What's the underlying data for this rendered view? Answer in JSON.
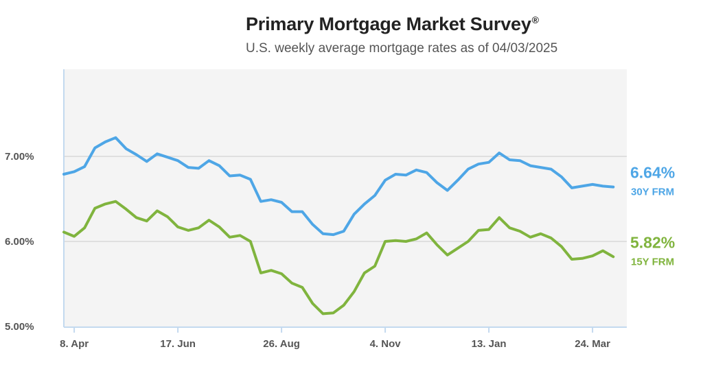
{
  "title": {
    "text": "Primary Mortgage Market Survey",
    "mark": "®",
    "subtitle": "U.S. weekly average mortgage rates as of 04/03/2025"
  },
  "colors": {
    "series_30y": "#4ea6e6",
    "series_15y": "#80b43e",
    "plot_bg": "#f4f4f4",
    "grid": "#d8d8d8",
    "axis": "#c3d9ef"
  },
  "chart_data": {
    "type": "line",
    "title": "Primary Mortgage Market Survey®",
    "subtitle": "U.S. weekly average mortgage rates as of 04/03/2025",
    "x_tick_labels": [
      "8. Apr",
      "17. Jun",
      "26. Aug",
      "4. Nov",
      "13. Jan",
      "24. Mar"
    ],
    "x_tick_weeks": [
      1,
      11,
      21,
      31,
      41,
      51
    ],
    "y_tick_labels": [
      "5.00%",
      "6.00%",
      "7.00%"
    ],
    "y_ticks": [
      5,
      6,
      7
    ],
    "ylim": [
      4.9,
      8.0
    ],
    "grid": true,
    "series": [
      {
        "name": "30Y FRM",
        "end_label": "6.64%",
        "values": [
          6.79,
          6.82,
          6.88,
          7.1,
          7.17,
          7.22,
          7.09,
          7.02,
          6.94,
          7.03,
          6.99,
          6.95,
          6.87,
          6.86,
          6.95,
          6.89,
          6.77,
          6.78,
          6.73,
          6.47,
          6.49,
          6.46,
          6.35,
          6.35,
          6.2,
          6.09,
          6.08,
          6.12,
          6.32,
          6.44,
          6.54,
          6.72,
          6.79,
          6.78,
          6.84,
          6.81,
          6.69,
          6.6,
          6.72,
          6.85,
          6.91,
          6.93,
          7.04,
          6.96,
          6.95,
          6.89,
          6.87,
          6.85,
          6.76,
          6.63,
          6.65,
          6.67,
          6.65,
          6.64
        ]
      },
      {
        "name": "15Y FRM",
        "end_label": "5.82%",
        "values": [
          6.11,
          6.06,
          6.16,
          6.39,
          6.44,
          6.47,
          6.38,
          6.28,
          6.24,
          6.36,
          6.29,
          6.17,
          6.13,
          6.16,
          6.25,
          6.17,
          6.05,
          6.07,
          6.0,
          5.63,
          5.66,
          5.62,
          5.51,
          5.46,
          5.27,
          5.15,
          5.16,
          5.25,
          5.41,
          5.63,
          5.71,
          6.0,
          6.01,
          6.0,
          6.03,
          6.1,
          5.96,
          5.84,
          5.92,
          6.0,
          6.13,
          6.14,
          6.28,
          6.16,
          6.12,
          6.05,
          6.09,
          6.04,
          5.94,
          5.79,
          5.8,
          5.83,
          5.89,
          5.82
        ]
      }
    ]
  }
}
